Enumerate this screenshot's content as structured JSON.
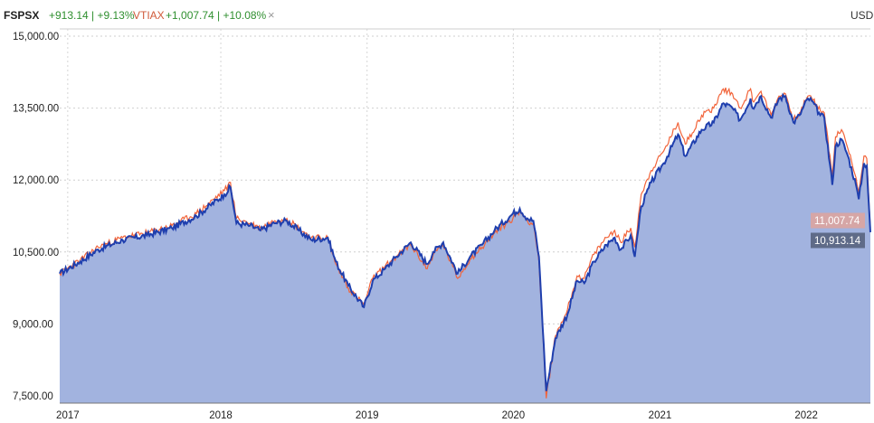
{
  "header": {
    "series1_symbol": "FSPSX",
    "series1_change": "+913.14 | +9.13%",
    "series2_symbol": "VTIAX",
    "series2_change": "+1,007.74 | +10.08%",
    "close_glyph": "×",
    "currency": "USD"
  },
  "colors": {
    "fspsx_line": "#1f3fae",
    "fspsx_area": "#a2b3df",
    "vtiax_line": "#f2643a",
    "positive": "#2f8f2f",
    "vtiax_label": "#d05a3a",
    "vtiax_badge": "#d6a6a6",
    "fspsx_badge": "#5f6b88"
  },
  "chart_data": {
    "type": "line",
    "title": "",
    "xlabel": "",
    "ylabel": "",
    "ylim": [
      7350,
      15150
    ],
    "xlim": [
      "2016-11-25",
      "2022-06-10"
    ],
    "grid": true,
    "yticks": [
      {
        "value": 7500,
        "label": "7,500.00"
      },
      {
        "value": 9000,
        "label": "9,000.00"
      },
      {
        "value": 10500,
        "label": "10,500.00"
      },
      {
        "value": 12000,
        "label": "12,000.00"
      },
      {
        "value": 13500,
        "label": "13,500.00"
      },
      {
        "value": 15000,
        "label": "15,000.00"
      }
    ],
    "xticks": [
      {
        "date": "2016-12-15",
        "label": "2017"
      },
      {
        "date": "2018-01-01",
        "label": "2018"
      },
      {
        "date": "2019-01-01",
        "label": "2019"
      },
      {
        "date": "2020-01-01",
        "label": "2020"
      },
      {
        "date": "2021-01-01",
        "label": "2021"
      },
      {
        "date": "2022-01-01",
        "label": "2022"
      }
    ],
    "series": [
      {
        "name": "FSPSX",
        "last_label": "10,913.14",
        "points": [
          [
            "2016-11-25",
            10050
          ],
          [
            "2017-01-15",
            10300
          ],
          [
            "2017-03-01",
            10550
          ],
          [
            "2017-05-01",
            10750
          ],
          [
            "2017-07-01",
            10850
          ],
          [
            "2017-09-01",
            11000
          ],
          [
            "2017-11-01",
            11250
          ],
          [
            "2018-01-10",
            11700
          ],
          [
            "2018-01-25",
            11850
          ],
          [
            "2018-02-09",
            11100
          ],
          [
            "2018-03-15",
            11050
          ],
          [
            "2018-04-10",
            10950
          ],
          [
            "2018-05-15",
            11100
          ],
          [
            "2018-06-15",
            11150
          ],
          [
            "2018-07-15",
            10950
          ],
          [
            "2018-08-15",
            10750
          ],
          [
            "2018-09-25",
            10800
          ],
          [
            "2018-10-15",
            10300
          ],
          [
            "2018-11-15",
            9800
          ],
          [
            "2018-12-24",
            9350
          ],
          [
            "2019-01-15",
            9900
          ],
          [
            "2019-02-15",
            10150
          ],
          [
            "2019-03-15",
            10400
          ],
          [
            "2019-04-20",
            10700
          ],
          [
            "2019-05-31",
            10250
          ],
          [
            "2019-06-15",
            10500
          ],
          [
            "2019-07-10",
            10700
          ],
          [
            "2019-08-15",
            10050
          ],
          [
            "2019-09-15",
            10400
          ],
          [
            "2019-10-15",
            10650
          ],
          [
            "2019-11-15",
            10950
          ],
          [
            "2019-12-31",
            11300
          ],
          [
            "2020-01-17",
            11400
          ],
          [
            "2020-02-05",
            11200
          ],
          [
            "2020-02-20",
            11150
          ],
          [
            "2020-03-05",
            10400
          ],
          [
            "2020-03-23",
            7600
          ],
          [
            "2020-04-15",
            8700
          ],
          [
            "2020-05-15",
            9200
          ],
          [
            "2020-06-08",
            9900
          ],
          [
            "2020-06-26",
            9850
          ],
          [
            "2020-07-20",
            10300
          ],
          [
            "2020-08-20",
            10650
          ],
          [
            "2020-09-10",
            10800
          ],
          [
            "2020-09-25",
            10550
          ],
          [
            "2020-10-20",
            10850
          ],
          [
            "2020-10-30",
            10400
          ],
          [
            "2020-11-15",
            11450
          ],
          [
            "2020-12-10",
            11950
          ],
          [
            "2021-01-10",
            12350
          ],
          [
            "2021-02-15",
            12950
          ],
          [
            "2021-03-05",
            12500
          ],
          [
            "2021-04-15",
            13050
          ],
          [
            "2021-05-15",
            13200
          ],
          [
            "2021-06-08",
            13600
          ],
          [
            "2021-07-01",
            13500
          ],
          [
            "2021-07-20",
            13250
          ],
          [
            "2021-08-15",
            13700
          ],
          [
            "2021-08-20",
            13500
          ],
          [
            "2021-09-10",
            13750
          ],
          [
            "2021-10-05",
            13300
          ],
          [
            "2021-10-25",
            13700
          ],
          [
            "2021-11-10",
            13750
          ],
          [
            "2021-11-30",
            13200
          ],
          [
            "2021-12-15",
            13350
          ],
          [
            "2022-01-05",
            13700
          ],
          [
            "2022-01-15",
            13650
          ],
          [
            "2022-02-05",
            13350
          ],
          [
            "2022-02-15",
            13300
          ],
          [
            "2022-03-07",
            11900
          ],
          [
            "2022-03-15",
            12700
          ],
          [
            "2022-03-30",
            12850
          ],
          [
            "2022-04-15",
            12500
          ],
          [
            "2022-05-05",
            11900
          ],
          [
            "2022-05-12",
            11600
          ],
          [
            "2022-05-25",
            12350
          ],
          [
            "2022-06-01",
            12300
          ],
          [
            "2022-06-10",
            10913
          ]
        ]
      },
      {
        "name": "VTIAX",
        "last_label": "11,007.74",
        "points": [
          [
            "2016-11-25",
            10050
          ],
          [
            "2017-01-15",
            10330
          ],
          [
            "2017-03-01",
            10600
          ],
          [
            "2017-05-01",
            10800
          ],
          [
            "2017-07-01",
            10900
          ],
          [
            "2017-09-01",
            11050
          ],
          [
            "2017-11-01",
            11300
          ],
          [
            "2018-01-10",
            11780
          ],
          [
            "2018-01-25",
            11950
          ],
          [
            "2018-02-09",
            11200
          ],
          [
            "2018-03-15",
            11100
          ],
          [
            "2018-04-10",
            11000
          ],
          [
            "2018-05-15",
            11150
          ],
          [
            "2018-06-15",
            11200
          ],
          [
            "2018-07-15",
            11000
          ],
          [
            "2018-08-15",
            10800
          ],
          [
            "2018-09-25",
            10800
          ],
          [
            "2018-10-15",
            10250
          ],
          [
            "2018-11-15",
            9750
          ],
          [
            "2018-12-24",
            9400
          ],
          [
            "2019-01-15",
            9950
          ],
          [
            "2019-02-15",
            10200
          ],
          [
            "2019-03-15",
            10400
          ],
          [
            "2019-04-20",
            10650
          ],
          [
            "2019-05-31",
            10150
          ],
          [
            "2019-06-15",
            10450
          ],
          [
            "2019-07-10",
            10650
          ],
          [
            "2019-08-15",
            9950
          ],
          [
            "2019-09-15",
            10350
          ],
          [
            "2019-10-15",
            10600
          ],
          [
            "2019-11-15",
            10900
          ],
          [
            "2019-12-31",
            11200
          ],
          [
            "2020-01-17",
            11350
          ],
          [
            "2020-02-05",
            11150
          ],
          [
            "2020-02-20",
            11100
          ],
          [
            "2020-03-05",
            10300
          ],
          [
            "2020-03-23",
            7450
          ],
          [
            "2020-04-15",
            8750
          ],
          [
            "2020-05-15",
            9300
          ],
          [
            "2020-06-08",
            10000
          ],
          [
            "2020-06-26",
            9950
          ],
          [
            "2020-07-20",
            10450
          ],
          [
            "2020-08-20",
            10800
          ],
          [
            "2020-09-10",
            10950
          ],
          [
            "2020-09-25",
            10700
          ],
          [
            "2020-10-20",
            11000
          ],
          [
            "2020-10-30",
            10600
          ],
          [
            "2020-11-15",
            11700
          ],
          [
            "2020-12-10",
            12200
          ],
          [
            "2021-01-10",
            12600
          ],
          [
            "2021-02-15",
            13200
          ],
          [
            "2021-03-05",
            12750
          ],
          [
            "2021-04-15",
            13350
          ],
          [
            "2021-05-15",
            13500
          ],
          [
            "2021-06-08",
            13900
          ],
          [
            "2021-07-01",
            13800
          ],
          [
            "2021-07-20",
            13500
          ],
          [
            "2021-08-15",
            13900
          ],
          [
            "2021-08-20",
            13650
          ],
          [
            "2021-09-10",
            13850
          ],
          [
            "2021-10-05",
            13350
          ],
          [
            "2021-10-25",
            13750
          ],
          [
            "2021-11-10",
            13800
          ],
          [
            "2021-11-30",
            13250
          ],
          [
            "2021-12-15",
            13400
          ],
          [
            "2022-01-05",
            13750
          ],
          [
            "2022-01-15",
            13700
          ],
          [
            "2022-02-05",
            13450
          ],
          [
            "2022-02-15",
            13400
          ],
          [
            "2022-03-07",
            12100
          ],
          [
            "2022-03-15",
            12900
          ],
          [
            "2022-03-30",
            13050
          ],
          [
            "2022-04-15",
            12650
          ],
          [
            "2022-05-05",
            12050
          ],
          [
            "2022-05-12",
            11750
          ],
          [
            "2022-05-25",
            12500
          ],
          [
            "2022-06-01",
            12450
          ],
          [
            "2022-06-10",
            11008
          ]
        ]
      }
    ]
  }
}
